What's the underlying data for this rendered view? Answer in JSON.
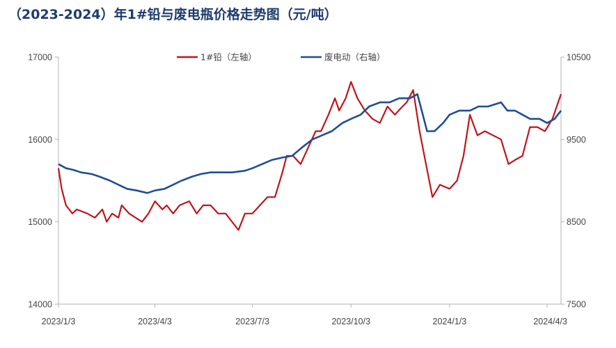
{
  "title": "（2023-2024）年1#铅与废电瓶价格走势图（元/吨）",
  "colors": {
    "lead": "#c0141c",
    "battery": "#1f4e96",
    "axis": "#b3b3b3"
  },
  "chart_data": {
    "type": "line",
    "title": "（2023-2024）年1#铅与废电瓶价格走势图（元/吨）",
    "x_ticks": [
      "2023/1/3",
      "2023/4/3",
      "2023/7/3",
      "2023/10/3",
      "2024/1/3",
      "2024/4/3"
    ],
    "x_range": [
      "2023/1/3",
      "2024/4/16"
    ],
    "y_left": {
      "ticks": [
        "14000",
        "15000",
        "16000",
        "17000"
      ],
      "ylim": [
        14000,
        17000
      ]
    },
    "y_right": {
      "ticks": [
        "7500",
        "8500",
        "9500",
        "10500"
      ],
      "ylim": [
        7500,
        10500
      ]
    },
    "grid": false,
    "legend_position": "top-center",
    "series": [
      {
        "name": "1#铅（左轴）",
        "axis": "left",
        "x": [
          "2023/1/3",
          "2023/1/6",
          "2023/1/10",
          "2023/1/16",
          "2023/1/20",
          "2023/1/30",
          "2023/2/6",
          "2023/2/13",
          "2023/2/17",
          "2023/2/22",
          "2023/2/28",
          "2023/3/3",
          "2023/3/10",
          "2023/3/16",
          "2023/3/22",
          "2023/3/28",
          "2023/4/3",
          "2023/4/10",
          "2023/4/14",
          "2023/4/20",
          "2023/4/26",
          "2023/5/5",
          "2023/5/12",
          "2023/5/18",
          "2023/5/25",
          "2023/6/1",
          "2023/6/8",
          "2023/6/14",
          "2023/6/20",
          "2023/6/26",
          "2023/7/3",
          "2023/7/10",
          "2023/7/17",
          "2023/7/24",
          "2023/7/31",
          "2023/8/4",
          "2023/8/10",
          "2023/8/17",
          "2023/8/24",
          "2023/8/31",
          "2023/9/5",
          "2023/9/12",
          "2023/9/18",
          "2023/9/22",
          "2023/9/28",
          "2023/10/3",
          "2023/10/9",
          "2023/10/16",
          "2023/10/23",
          "2023/10/30",
          "2023/11/6",
          "2023/11/13",
          "2023/11/20",
          "2023/11/24",
          "2023/11/30",
          "2023/12/6",
          "2023/12/12",
          "2023/12/18",
          "2023/12/25",
          "2024/1/3",
          "2024/1/10",
          "2024/1/16",
          "2024/1/22",
          "2024/1/29",
          "2024/2/5",
          "2024/2/20",
          "2024/2/27",
          "2024/3/4",
          "2024/3/11",
          "2024/3/18",
          "2024/3/25",
          "2024/4/1",
          "2024/4/8",
          "2024/4/12",
          "2024/4/16"
        ],
        "values": [
          15650,
          15400,
          15200,
          15100,
          15150,
          15100,
          15050,
          15150,
          15000,
          15100,
          15050,
          15200,
          15100,
          15050,
          15000,
          15100,
          15250,
          15150,
          15200,
          15100,
          15200,
          15250,
          15100,
          15200,
          15200,
          15100,
          15100,
          15000,
          14900,
          15100,
          15100,
          15200,
          15300,
          15300,
          15600,
          15800,
          15800,
          15700,
          15900,
          16100,
          16100,
          16300,
          16500,
          16350,
          16500,
          16700,
          16500,
          16350,
          16250,
          16200,
          16400,
          16300,
          16400,
          16450,
          16600,
          16100,
          15700,
          15300,
          15450,
          15400,
          15500,
          15800,
          16300,
          16050,
          16100,
          16000,
          15700,
          15750,
          15800,
          16150,
          16150,
          16100,
          16250,
          16400,
          16550
        ]
      },
      {
        "name": "废电动（右轴）",
        "axis": "right",
        "x": [
          "2023/1/3",
          "2023/1/10",
          "2023/1/17",
          "2023/1/24",
          "2023/2/3",
          "2023/2/10",
          "2023/2/20",
          "2023/2/28",
          "2023/3/8",
          "2023/3/17",
          "2023/3/27",
          "2023/4/3",
          "2023/4/12",
          "2023/4/20",
          "2023/4/28",
          "2023/5/8",
          "2023/5/16",
          "2023/5/25",
          "2023/6/5",
          "2023/6/14",
          "2023/6/26",
          "2023/7/3",
          "2023/7/12",
          "2023/7/21",
          "2023/7/31",
          "2023/8/9",
          "2023/8/18",
          "2023/8/28",
          "2023/9/6",
          "2023/9/15",
          "2023/9/25",
          "2023/10/3",
          "2023/10/12",
          "2023/10/20",
          "2023/10/30",
          "2023/11/8",
          "2023/11/17",
          "2023/11/27",
          "2023/12/4",
          "2023/12/8",
          "2023/12/13",
          "2023/12/20",
          "2023/12/28",
          "2024/1/3",
          "2024/1/12",
          "2024/1/22",
          "2024/1/30",
          "2024/2/8",
          "2024/2/20",
          "2024/2/26",
          "2024/3/4",
          "2024/3/11",
          "2024/3/18",
          "2024/3/27",
          "2024/4/3",
          "2024/4/10",
          "2024/4/16"
        ],
        "values": [
          9200,
          9150,
          9130,
          9100,
          9080,
          9050,
          9000,
          8950,
          8900,
          8880,
          8850,
          8880,
          8900,
          8950,
          9000,
          9050,
          9080,
          9100,
          9100,
          9100,
          9120,
          9150,
          9200,
          9250,
          9280,
          9300,
          9400,
          9500,
          9550,
          9600,
          9700,
          9750,
          9800,
          9900,
          9950,
          9950,
          10000,
          10000,
          10050,
          9850,
          9600,
          9600,
          9700,
          9800,
          9850,
          9850,
          9900,
          9900,
          9950,
          9850,
          9850,
          9800,
          9750,
          9750,
          9700,
          9750,
          9850
        ]
      }
    ]
  }
}
